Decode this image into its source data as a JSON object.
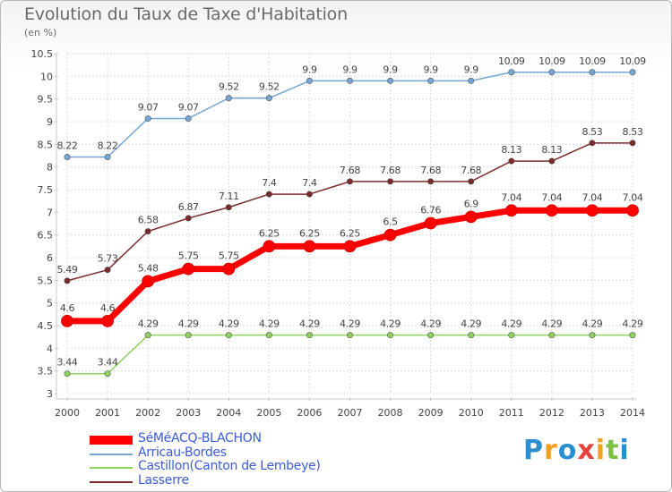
{
  "header": {
    "title": "Evolution du Taux de Taxe d'Habitation",
    "subtitle": "(en %)"
  },
  "chart_data": {
    "type": "line",
    "title": "Evolution du Taux de Taxe d'Habitation",
    "ylabel": "(en %)",
    "x": [
      2000,
      2001,
      2002,
      2003,
      2004,
      2005,
      2006,
      2007,
      2008,
      2009,
      2010,
      2011,
      2012,
      2013,
      2014
    ],
    "xlabels": [
      "2000",
      "2001",
      "2002",
      "2003",
      "2004",
      "2005",
      "2006",
      "2007",
      "2008",
      "2009",
      "2010",
      "2011",
      "2012",
      "2013",
      "2014"
    ],
    "ylim": [
      3,
      10.5
    ],
    "yticks": [
      3,
      3.5,
      4,
      4.5,
      5,
      5.5,
      6,
      6.5,
      7,
      7.5,
      8,
      8.5,
      9,
      9.5,
      10,
      10.5
    ],
    "ytick_labels": [
      "3",
      "3.5",
      "4",
      "4.5",
      "5",
      "5.5",
      "6",
      "6.5",
      "7",
      "7.5",
      "8",
      "8.5",
      "9",
      "9.5",
      "10",
      "10.5"
    ],
    "grid": true,
    "legend_position": "bottom-left",
    "series": [
      {
        "name": "SéMéACQ-BLACHON",
        "color": "#ff0000",
        "emphasis": true,
        "values": [
          4.6,
          4.6,
          5.48,
          5.75,
          5.75,
          6.25,
          6.25,
          6.25,
          6.5,
          6.76,
          6.9,
          7.04,
          7.04,
          7.04,
          7.04
        ],
        "labels": [
          "4.6",
          "4.6",
          "5.48",
          "5.75",
          "5.75",
          "6.25",
          "6.25",
          "6.25",
          "6.5",
          "6.76",
          "6.9",
          "7.04",
          "7.04",
          "7.04",
          "7.04"
        ]
      },
      {
        "name": "Arricau-Bordes",
        "color": "#74a7d6",
        "emphasis": false,
        "values": [
          8.22,
          8.22,
          9.07,
          9.07,
          9.52,
          9.52,
          9.9,
          9.9,
          9.9,
          9.9,
          9.9,
          10.09,
          10.09,
          10.09,
          10.09
        ],
        "labels": [
          "8.22",
          "8.22",
          "9.07",
          "9.07",
          "9.52",
          "9.52",
          "9.9",
          "9.9",
          "9.9",
          "9.9",
          "9.9",
          "10.09",
          "10.09",
          "10.09",
          "10.09"
        ]
      },
      {
        "name": "Castillon(Canton de Lembeye)",
        "color": "#8fd35e",
        "emphasis": false,
        "values": [
          3.44,
          3.44,
          4.29,
          4.29,
          4.29,
          4.29,
          4.29,
          4.29,
          4.29,
          4.29,
          4.29,
          4.29,
          4.29,
          4.29,
          4.29
        ],
        "labels": [
          "3.44",
          "3.44",
          "4.29",
          "4.29",
          "4.29",
          "4.29",
          "4.29",
          "4.29",
          "4.29",
          "4.29",
          "4.29",
          "4.29",
          "4.29",
          "4.29",
          "4.29"
        ]
      },
      {
        "name": "Lasserre",
        "color": "#7a2a2a",
        "emphasis": false,
        "values": [
          5.49,
          5.73,
          6.58,
          6.87,
          7.11,
          7.4,
          7.4,
          7.68,
          7.68,
          7.68,
          7.68,
          8.13,
          8.13,
          8.53,
          8.53
        ],
        "labels": [
          "5.49",
          "5.73",
          "6.58",
          "6.87",
          "7.11",
          "7.4",
          "7.4",
          "7.68",
          "7.68",
          "7.68",
          "7.68",
          "8.13",
          "8.13",
          "8.53",
          "8.53"
        ]
      }
    ]
  },
  "logo": {
    "letters": [
      "P",
      "r",
      "o",
      "x",
      "i",
      "t",
      "i"
    ],
    "colors": [
      "#2a8fd0",
      "#f0a020",
      "#2a8fd0",
      "#e8403a",
      "#f0a020",
      "#7ac043",
      "#2a8fd0"
    ]
  }
}
